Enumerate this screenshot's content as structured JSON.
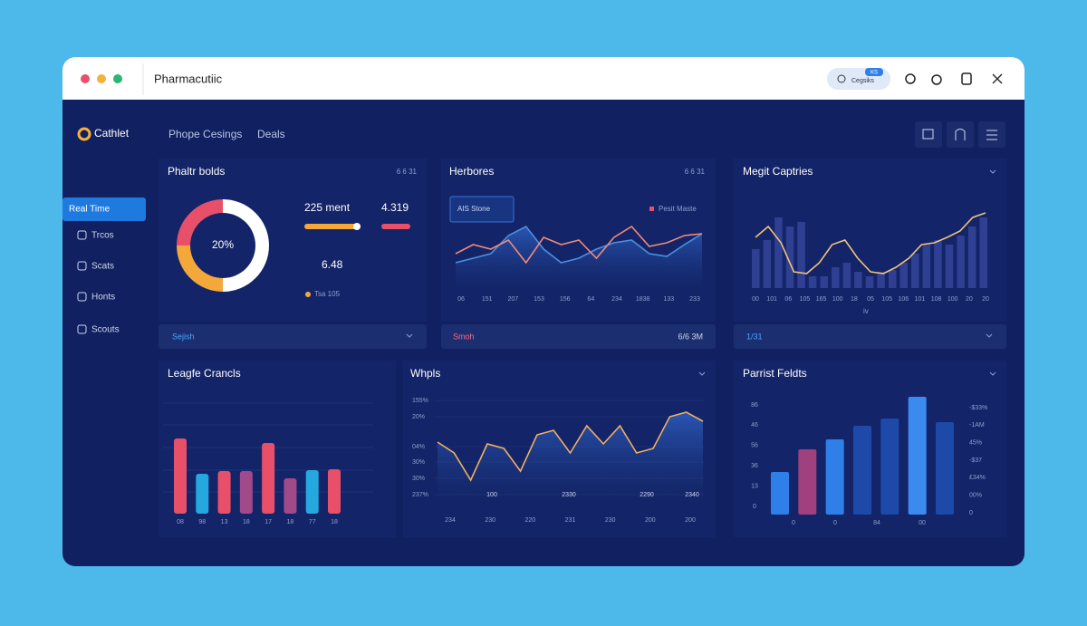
{
  "window": {
    "title": "Pharmacutiic",
    "pill": "Cegsiks",
    "pill_badge": "KS"
  },
  "sidebar": {
    "brand": "Cathlet",
    "items": [
      "Real Time",
      "Trcos",
      "Scats",
      "Honts",
      "Scouts"
    ]
  },
  "tabs": [
    "Phope Cesings",
    "Deals"
  ],
  "panel_donut": {
    "title": "Phaltr bolds",
    "corner": "6 6 31",
    "center": "20%",
    "values": [
      25,
      50,
      25
    ],
    "colors": [
      "#e8506a",
      "#ffffff",
      "#f5a83a"
    ],
    "stat_a": "225 ment",
    "stat_b": "4.319",
    "stat_c": "6.48",
    "legend": "Tsa 105",
    "footer": "Sejish"
  },
  "panel_lines": {
    "title": "Herbores",
    "corner": "6 6 31",
    "badge": "AIS Stone",
    "legend": "Pesit Maste",
    "x_labels": [
      "06",
      "151",
      "207",
      "153",
      "156",
      "64",
      "234",
      "1838",
      "133",
      "233"
    ],
    "series": [
      {
        "color": "#f08a7a",
        "values": [
          38,
          48,
          43,
          53,
          28,
          56,
          48,
          53,
          33,
          56,
          68,
          46,
          50,
          58,
          60
        ]
      },
      {
        "color": "#4d8fe0",
        "values": [
          28,
          33,
          38,
          58,
          68,
          43,
          28,
          33,
          43,
          50,
          53,
          38,
          35,
          48,
          60
        ]
      }
    ],
    "footer": "Smoh",
    "footer_value": "6/6 3M"
  },
  "panel_combo": {
    "title": "Megit Captries",
    "x_labels": [
      "00",
      "101",
      "06",
      "105",
      "165",
      "100",
      "18",
      "05",
      "105",
      "106",
      "101",
      "108",
      "100",
      "20",
      "20"
    ],
    "bars": [
      43,
      53,
      78,
      68,
      73,
      13,
      13,
      23,
      28,
      18,
      13,
      18,
      20,
      28,
      38,
      48,
      53,
      48,
      58,
      68,
      78
    ],
    "bar_color": "#2f3f92",
    "line": [
      56,
      68,
      50,
      18,
      16,
      28,
      48,
      53,
      33,
      18,
      16,
      23,
      33,
      48,
      50,
      56,
      63,
      78,
      83
    ],
    "line_color": "#f2c27a",
    "axis_note": "iv",
    "footer": "1/31"
  },
  "panel_bars": {
    "title": "Leagfe Crancls",
    "x_labels": [
      "08",
      "98",
      "13",
      "18",
      "17",
      "18",
      "77",
      "18"
    ],
    "values": [
      83,
      44,
      47,
      47,
      78,
      39,
      48,
      49
    ],
    "colors": [
      "#e8506a",
      "#25a8e0",
      "#e8506a",
      "#a04a8a",
      "#e8506a",
      "#a04a8a",
      "#25a8e0",
      "#e8506a"
    ]
  },
  "panel_area": {
    "title": "Whpls",
    "y_labels": [
      "155%",
      "20%",
      "04%",
      "30%",
      "30%",
      "237%"
    ],
    "inner_labels": [
      "100",
      "2330",
      "2290",
      "2340"
    ],
    "x_labels": [
      "234",
      "230",
      "220",
      "231",
      "230",
      "200",
      "200"
    ],
    "values": [
      62,
      50,
      20,
      60,
      55,
      30,
      70,
      75,
      50,
      80,
      60,
      80,
      50,
      55,
      90,
      95,
      85
    ],
    "color": "#f0b060"
  },
  "panel_blue": {
    "title": "Parrist Feldts",
    "y_labels_left": [
      "86",
      "46",
      "56",
      "36",
      "13",
      "0"
    ],
    "y_labels_right": [
      "-$33%",
      "-1AM",
      "45%",
      "-$37",
      "£34%",
      "00%",
      "0"
    ],
    "x_labels": [
      "0",
      "0",
      "84",
      "00"
    ],
    "values": [
      47,
      72,
      83,
      98,
      106,
      130,
      102
    ],
    "colors": [
      "#2f7fe8",
      "#a0407e",
      "#2f7fe8",
      "#1d4aa8",
      "#1d4aa8",
      "#3a8af0",
      "#1d4aa8"
    ]
  }
}
